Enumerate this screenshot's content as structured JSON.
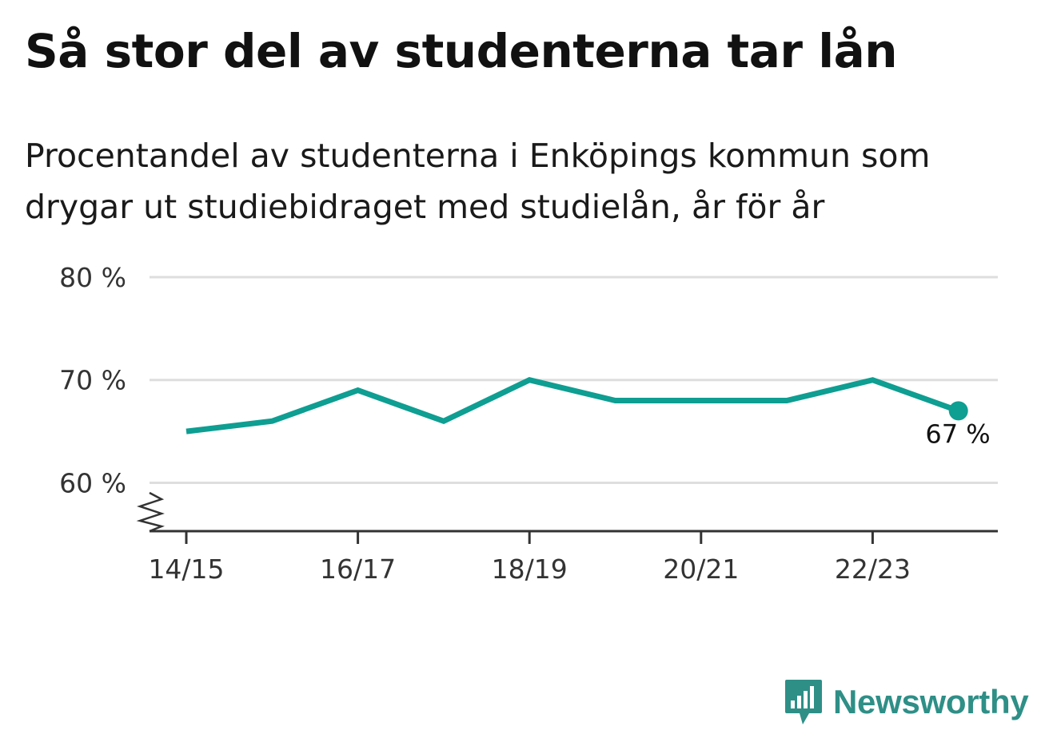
{
  "title": "Så stor del av studenterna tar lån",
  "subtitle": "Procentandel av studenterna i Enköpings kommun som drygar ut studiebidraget med studielån, år för år",
  "brand": {
    "name": "Newsworthy",
    "color": "#2e8f87"
  },
  "chart_data": {
    "type": "line",
    "x": [
      "14/15",
      "15/16",
      "16/17",
      "17/18",
      "18/19",
      "19/20",
      "20/21",
      "21/22",
      "22/23",
      "23/24"
    ],
    "x_tick_labels": [
      "14/15",
      "16/17",
      "18/19",
      "20/21",
      "22/23"
    ],
    "series": [
      {
        "values": [
          65,
          66,
          69,
          66,
          70,
          68,
          68,
          68,
          70,
          67
        ],
        "color": "#0e9e92"
      }
    ],
    "y_ticks": [
      60,
      70,
      80
    ],
    "y_tick_labels": [
      "60 %",
      "70 %",
      "80 %"
    ],
    "ylim": [
      55.3,
      80
    ],
    "y_axis_break": true,
    "grid": true,
    "end_label": "67 %"
  }
}
